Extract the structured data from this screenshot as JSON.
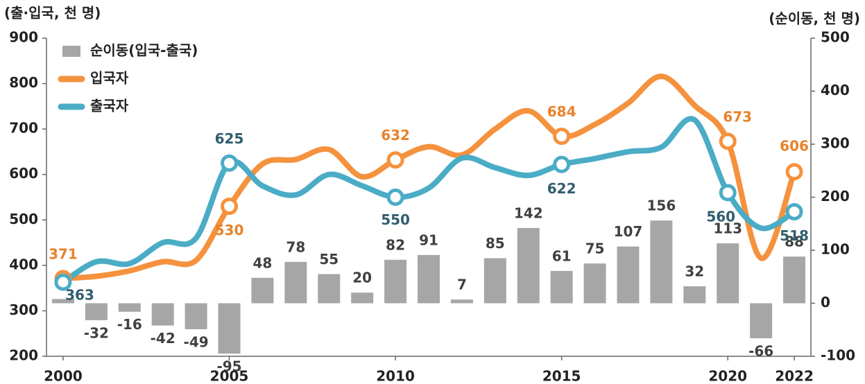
{
  "chart_data": {
    "type": "combo",
    "y_axis_label": "(출·입국, 천 명)",
    "y2_axis_label": "(순이동, 천 명)",
    "x": [
      2000,
      2001,
      2002,
      2003,
      2004,
      2005,
      2006,
      2007,
      2008,
      2009,
      2010,
      2011,
      2012,
      2013,
      2014,
      2015,
      2016,
      2017,
      2018,
      2019,
      2020,
      2021,
      2022
    ],
    "xlim": [
      1999.5,
      2022.5
    ],
    "xticks": [
      2000,
      2005,
      2010,
      2015,
      2020,
      2022
    ],
    "ylim": [
      200,
      900
    ],
    "yticks": [
      200,
      300,
      400,
      500,
      600,
      700,
      800,
      900
    ],
    "y2lim": [
      -100,
      500
    ],
    "y2ticks": [
      -100,
      0,
      100,
      200,
      300,
      400,
      500
    ],
    "legend": "top-left",
    "series": [
      {
        "name": "순이동(입국-출국)",
        "type": "bar",
        "axis": "y2",
        "color": "#a6a6a6",
        "values": [
          8,
          -32,
          -16,
          -42,
          -49,
          -95,
          48,
          78,
          55,
          20,
          82,
          91,
          7,
          85,
          142,
          61,
          75,
          107,
          156,
          32,
          113,
          -66,
          88
        ]
      },
      {
        "name": "입국자",
        "type": "line",
        "color": "#f5923e",
        "label_color": "#e8822a",
        "values": [
          371,
          376,
          388,
          408,
          411,
          530,
          623,
          633,
          655,
          595,
          632,
          661,
          643,
          700,
          740,
          684,
          710,
          757,
          816,
          752,
          673,
          416,
          606
        ],
        "labels_at": [
          0,
          5,
          10,
          15,
          20,
          22
        ]
      },
      {
        "name": "출국자",
        "type": "line",
        "color": "#4bacc6",
        "label_color": "#2f5e6e",
        "values": [
          363,
          408,
          404,
          450,
          460,
          625,
          575,
          555,
          600,
          575,
          550,
          570,
          636,
          615,
          598,
          622,
          635,
          650,
          660,
          720,
          560,
          482,
          518
        ],
        "labels_at": [
          0,
          5,
          10,
          15,
          20,
          22
        ]
      }
    ]
  }
}
